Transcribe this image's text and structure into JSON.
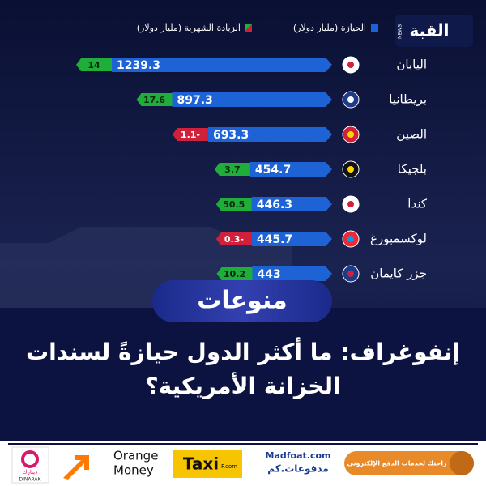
{
  "logo": {
    "name": "القبة",
    "tag": "NEWS"
  },
  "chart_data": {
    "type": "bar",
    "orientation": "horizontal",
    "categories": [
      "اليابان",
      "بريطانيا",
      "الصين",
      "بلجيكا",
      "كندا",
      "لوكسمبورغ",
      "جزر كايمان"
    ],
    "series": [
      {
        "name": "الحيازة (مليار دولار)",
        "color": "#1e63d6",
        "values": [
          1239.3,
          897.3,
          693.3,
          454.7,
          446.3,
          445.7,
          443
        ]
      },
      {
        "name": "الزيادة الشهرية (مليار دولار)",
        "color": "#1fae3a",
        "negative_color": "#d0203b",
        "values": [
          14,
          17.6,
          -1.1,
          3.7,
          50.5,
          -0.3,
          10.2
        ],
        "value_labels": [
          "14",
          "17.6",
          "1.1-",
          "3.7",
          "50.5",
          "0.3-",
          "10.2"
        ]
      }
    ]
  },
  "category": "منوعات",
  "headline": [
    "إنفوغراف: ما أكثر الدول حيازةً لسندات",
    "الخزانة الأمريكية؟"
  ],
  "sponsors": {
    "rahtak": "راحتك لخدمات الدفع الإلكتروني",
    "madfoat": "Madfoat.com",
    "madfoat_ar": "مدفوعات.كم",
    "taxi": "Taxi",
    "taxi_suffix": "F.com",
    "orange": [
      "Orange",
      "Money"
    ],
    "dinarak_ar": "دينارك",
    "dinarak": "DINARAK"
  }
}
